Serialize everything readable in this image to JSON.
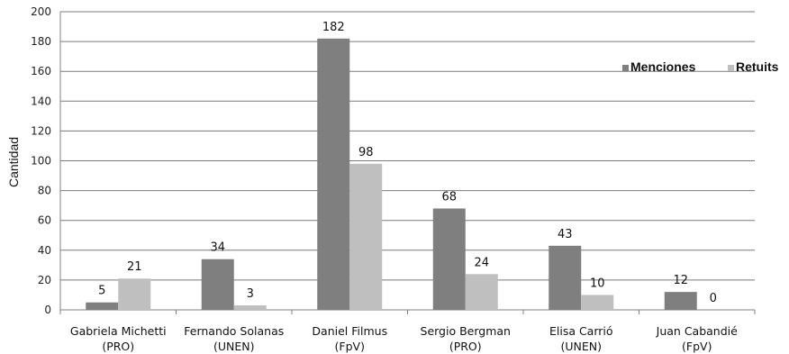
{
  "chart_data": {
    "type": "bar",
    "ylabel": "Cantidad",
    "xlabel": "",
    "ylim": [
      0,
      200
    ],
    "yticks": [
      0,
      20,
      40,
      60,
      80,
      100,
      120,
      140,
      160,
      180,
      200
    ],
    "grid": true,
    "legend_position": "right",
    "categories": [
      [
        "Gabriela Michetti",
        "(PRO)"
      ],
      [
        "Fernando Solanas",
        "(UNEN)"
      ],
      [
        "Daniel Filmus",
        "(FpV)"
      ],
      [
        "Sergio Bergman",
        "(PRO)"
      ],
      [
        "Elisa Carrió",
        "(UNEN)"
      ],
      [
        "Juan Cabandié",
        "(FpV)"
      ]
    ],
    "series": [
      {
        "name": "Menciones",
        "color": "#7f7f7f",
        "values": [
          5,
          34,
          182,
          68,
          43,
          12
        ]
      },
      {
        "name": "Retuits",
        "color": "#bfbfbf",
        "values": [
          21,
          3,
          98,
          24,
          10,
          0
        ]
      }
    ]
  }
}
